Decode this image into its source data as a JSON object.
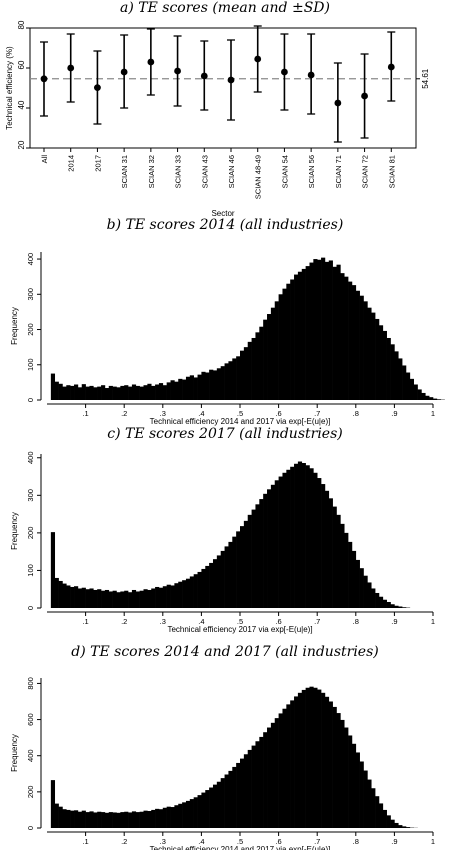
{
  "chart_data": [
    {
      "type": "errorbar",
      "title": "a) TE scores (mean and ±SD)",
      "xlabel": "Sector",
      "ylabel": "Technical efficiency (%)",
      "ylim": [
        20,
        80
      ],
      "yticks": [
        "20",
        "40",
        "60",
        "80"
      ],
      "reference_line": {
        "value": 54.61,
        "label": "54.61"
      },
      "categories": [
        "All",
        "2014",
        "2017",
        "SCIAN 31",
        "SCIAN 32",
        "SCIAN 33",
        "SCIAN 43",
        "SCIAN 46",
        "SCIAN 48-49",
        "SCIAN 54",
        "SCIAN 56",
        "SCIAN 71",
        "SCIAN 72",
        "SCIAN 81"
      ],
      "mean": [
        54.6,
        60.0,
        50.2,
        58.0,
        63.0,
        58.5,
        56.0,
        54.0,
        64.5,
        58.0,
        56.5,
        42.5,
        46.0,
        60.5
      ],
      "lower": [
        36.0,
        43.0,
        32.0,
        40.0,
        46.5,
        41.0,
        39.0,
        34.0,
        48.0,
        39.0,
        37.0,
        23.0,
        25.0,
        43.5
      ],
      "upper": [
        73.0,
        77.0,
        68.5,
        76.5,
        79.5,
        76.0,
        73.5,
        74.0,
        81.0,
        77.0,
        77.0,
        62.5,
        67.0,
        78.0
      ]
    },
    {
      "type": "histogram",
      "title": "b) TE scores 2014 (all industries)",
      "xlabel": "Technical efficiency 2014 and 2017 via exp[-E(u|e)]",
      "ylabel": "Frequency",
      "xlim": [
        0,
        1
      ],
      "ylim": [
        0,
        420
      ],
      "xticks": [
        ".1",
        ".2",
        ".3",
        ".4",
        ".5",
        ".6",
        ".7",
        ".8",
        ".9",
        "1"
      ],
      "yticks": [
        "0",
        "100",
        "200",
        "300",
        "400"
      ],
      "bin_start": 0.01,
      "bin_width": 0.01,
      "values": [
        75,
        52,
        46,
        38,
        42,
        40,
        44,
        36,
        45,
        38,
        40,
        36,
        38,
        42,
        34,
        40,
        38,
        36,
        40,
        42,
        38,
        44,
        40,
        38,
        42,
        46,
        40,
        44,
        48,
        42,
        50,
        56,
        52,
        60,
        58,
        66,
        70,
        64,
        72,
        80,
        78,
        86,
        84,
        90,
        96,
        104,
        110,
        118,
        124,
        140,
        150,
        165,
        176,
        192,
        208,
        228,
        244,
        262,
        280,
        300,
        316,
        330,
        342,
        356,
        364,
        372,
        380,
        390,
        400,
        398,
        404,
        392,
        396,
        378,
        384,
        360,
        350,
        336,
        326,
        310,
        296,
        280,
        262,
        248,
        230,
        212,
        196,
        176,
        158,
        138,
        118,
        98,
        78,
        60,
        44,
        30,
        20,
        12,
        8,
        4,
        2,
        1,
        0
      ]
    },
    {
      "type": "histogram",
      "title": "c) TE scores 2017 (all industries)",
      "xlabel": "Technical efficiency 2017 via exp[-E(u|e)]",
      "ylabel": "Frequency",
      "xlim": [
        0,
        1
      ],
      "ylim": [
        0,
        410
      ],
      "xticks": [
        ".1",
        ".2",
        ".3",
        ".4",
        ".5",
        ".6",
        ".7",
        ".8",
        ".9",
        "1"
      ],
      "yticks": [
        "0",
        "100",
        "200",
        "300",
        "400"
      ],
      "bin_start": 0.01,
      "bin_width": 0.01,
      "values": [
        202,
        80,
        72,
        65,
        60,
        56,
        58,
        52,
        54,
        50,
        52,
        48,
        50,
        46,
        48,
        44,
        46,
        42,
        44,
        46,
        42,
        48,
        44,
        46,
        50,
        48,
        52,
        56,
        54,
        58,
        62,
        60,
        66,
        70,
        74,
        78,
        84,
        90,
        96,
        104,
        112,
        120,
        130,
        140,
        152,
        164,
        176,
        190,
        204,
        218,
        232,
        248,
        262,
        276,
        290,
        304,
        316,
        328,
        340,
        350,
        360,
        368,
        376,
        384,
        390,
        386,
        380,
        372,
        360,
        346,
        330,
        312,
        292,
        270,
        248,
        224,
        200,
        176,
        152,
        128,
        106,
        86,
        68,
        52,
        40,
        30,
        22,
        16,
        10,
        6,
        4,
        2,
        1,
        0
      ]
    },
    {
      "type": "histogram",
      "title": "d) TE scores 2014 and 2017 (all industries)",
      "xlabel": "Technical efficiency 2014 and 2017 via exp[-E(u|e)]",
      "ylabel": "Frequency",
      "xlim": [
        0,
        1
      ],
      "ylim": [
        0,
        830
      ],
      "xticks": [
        ".1",
        ".2",
        ".3",
        ".4",
        ".5",
        ".6",
        ".7",
        ".8",
        ".9",
        "1"
      ],
      "yticks": [
        "0",
        "200",
        "400",
        "600",
        "800"
      ],
      "bin_start": 0.01,
      "bin_width": 0.01,
      "values": [
        265,
        135,
        118,
        104,
        100,
        96,
        98,
        90,
        96,
        88,
        92,
        86,
        90,
        88,
        84,
        88,
        86,
        84,
        88,
        90,
        86,
        92,
        88,
        90,
        96,
        94,
        100,
        106,
        104,
        112,
        118,
        116,
        126,
        134,
        142,
        150,
        160,
        170,
        182,
        196,
        210,
        224,
        240,
        256,
        276,
        296,
        316,
        338,
        360,
        384,
        408,
        432,
        456,
        480,
        504,
        530,
        556,
        582,
        608,
        634,
        660,
        684,
        706,
        728,
        748,
        764,
        776,
        782,
        776,
        766,
        748,
        726,
        700,
        670,
        636,
        598,
        556,
        512,
        466,
        418,
        368,
        318,
        268,
        220,
        176,
        136,
        100,
        70,
        46,
        28,
        16,
        9,
        5,
        2,
        1,
        0
      ]
    }
  ]
}
